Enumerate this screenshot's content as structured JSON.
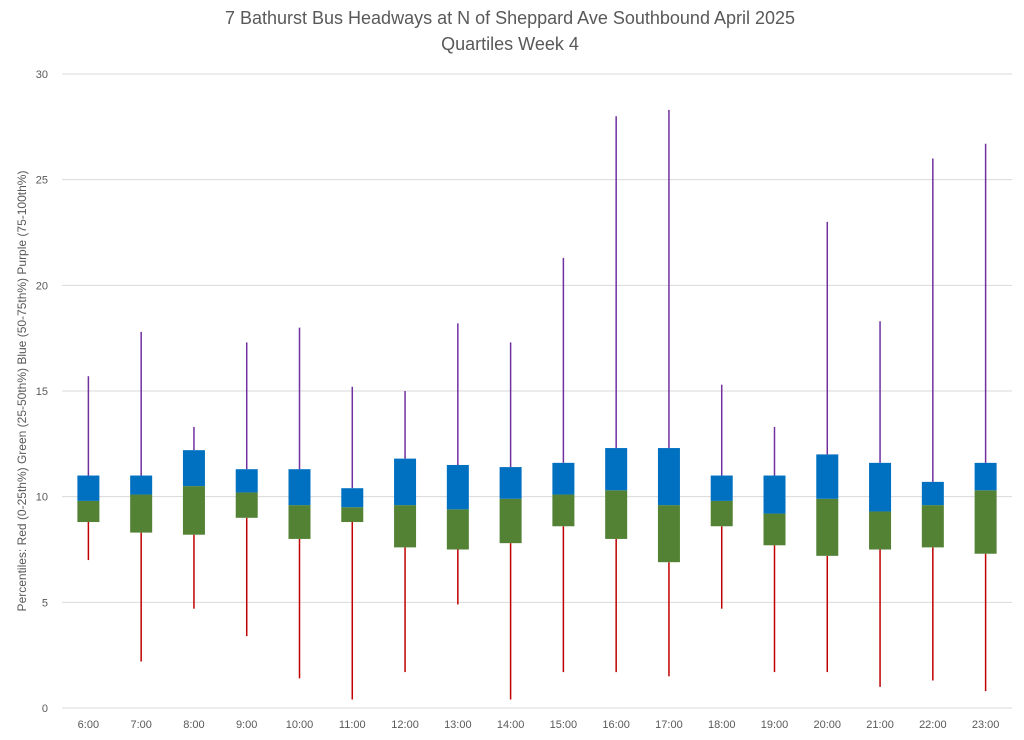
{
  "chart_data": {
    "type": "box",
    "title": "7 Bathurst Bus Headways at N of Sheppard Ave Southbound April 2025",
    "subtitle": "Quartiles Week 4",
    "xlabel": "",
    "ylabel": "Percentiles:  Red (0-25th%)  Green (25-50th%)  Blue (50-75th%)  Purple (75-100th%)",
    "ylim": [
      0,
      30
    ],
    "yticks": [
      "0",
      "5",
      "10",
      "15",
      "20",
      "25",
      "30"
    ],
    "grid": true,
    "categories": [
      "6:00",
      "7:00",
      "8:00",
      "9:00",
      "10:00",
      "11:00",
      "12:00",
      "13:00",
      "14:00",
      "15:00",
      "16:00",
      "17:00",
      "18:00",
      "19:00",
      "20:00",
      "21:00",
      "22:00",
      "23:00"
    ],
    "min": [
      7.0,
      2.2,
      4.7,
      3.4,
      1.4,
      0.4,
      1.7,
      4.9,
      0.4,
      1.7,
      1.7,
      1.5,
      4.7,
      1.7,
      1.7,
      1.0,
      1.3,
      0.8
    ],
    "q1": [
      8.8,
      8.3,
      8.2,
      9.0,
      8.0,
      8.8,
      7.6,
      7.5,
      7.8,
      8.6,
      8.0,
      6.9,
      8.6,
      7.7,
      7.2,
      7.5,
      7.6,
      7.3
    ],
    "median": [
      9.8,
      10.1,
      10.5,
      10.2,
      9.6,
      9.5,
      9.6,
      9.4,
      9.9,
      10.1,
      10.3,
      9.6,
      9.8,
      9.2,
      9.9,
      9.3,
      9.6,
      10.3
    ],
    "q3": [
      11.0,
      11.0,
      12.2,
      11.3,
      11.3,
      10.4,
      11.8,
      11.5,
      11.4,
      11.6,
      12.3,
      12.3,
      11.0,
      11.0,
      12.0,
      11.6,
      10.7,
      11.6
    ],
    "max": [
      15.7,
      17.8,
      13.3,
      17.3,
      18.0,
      15.2,
      15.0,
      18.2,
      17.3,
      21.3,
      28.0,
      28.3,
      15.3,
      13.3,
      23.0,
      18.3,
      26.0,
      26.7
    ],
    "colors": {
      "low_whisker": "#c00000",
      "lower_box": "#548235",
      "upper_box": "#0070c0",
      "high_whisker": "#7030a0",
      "grid": "#d9d9d9",
      "text": "#595959"
    }
  }
}
